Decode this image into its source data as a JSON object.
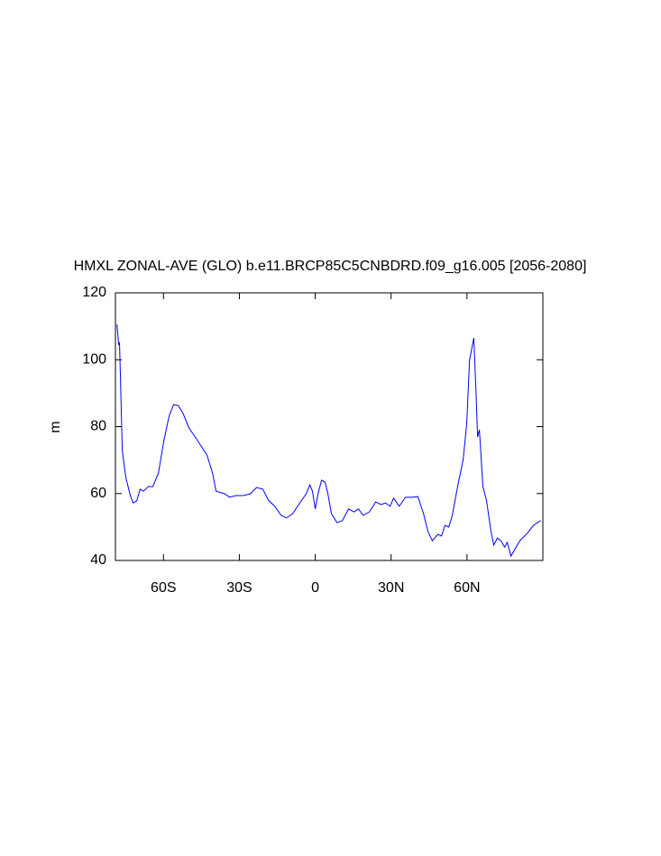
{
  "chart_data": {
    "type": "line",
    "title": "HMXL ZONAL-AVE (GLO) b.e11.BRCP85C5CNBDRD.f09_g16.005 [2056-2080]",
    "y_label": "m",
    "xlim": [
      -79,
      90
    ],
    "ylim": [
      40,
      120
    ],
    "xticks": [
      {
        "value": -60,
        "label": "60S"
      },
      {
        "value": -30,
        "label": "30S"
      },
      0,
      {
        "value": 30,
        "label": "30N"
      },
      {
        "value": 60,
        "label": "60N"
      }
    ],
    "yticks": [
      40,
      60,
      80,
      100,
      120
    ],
    "series": [
      {
        "color": "#0000ff",
        "x": [
          -78.4,
          -77.7,
          -77.4,
          -77,
          -76.3,
          -74.9,
          -73.1,
          -72,
          -70.6,
          -69.2,
          -67.9,
          -66,
          -64.2,
          -62,
          -59.9,
          -57.8,
          -56,
          -54.2,
          -52.4,
          -49.9,
          -46.3,
          -42.8,
          -40.6,
          -39.2,
          -35.7,
          -33.9,
          -31.4,
          -28.5,
          -25.7,
          -23.2,
          -20.7,
          -18.5,
          -16,
          -13.5,
          -11.4,
          -8.9,
          -6.1,
          -3.6,
          -2.1,
          -1.1,
          0,
          1.1,
          2.5,
          3.9,
          5,
          6.4,
          8.6,
          10.7,
          13.2,
          15.3,
          17.1,
          18.9,
          21.4,
          23.9,
          26,
          27.8,
          29.6,
          31,
          33.2,
          35.7,
          38.5,
          40.6,
          42.8,
          44.6,
          46.3,
          48.5,
          49.9,
          51.3,
          52.8,
          54.2,
          56.3,
          58.5,
          59.9,
          61,
          62.7,
          63.5,
          64.2,
          64.9,
          66.3,
          67.7,
          69.5,
          70.6,
          72,
          73.4,
          74.9,
          75.9,
          77.4,
          78.8,
          80.9,
          83.8,
          86.3,
          89.1
        ],
        "values": [
          110.6,
          104.4,
          105.2,
          94.4,
          72.9,
          64.8,
          59.4,
          57.2,
          57.8,
          61.3,
          60.7,
          62.1,
          62.1,
          66.1,
          75.6,
          83.1,
          86.6,
          86.3,
          84.2,
          79.6,
          75.6,
          71.5,
          66.1,
          60.7,
          59.9,
          58.9,
          59.4,
          59.4,
          59.9,
          61.8,
          61.3,
          58.0,
          56.2,
          53.5,
          52.7,
          54.0,
          57.2,
          59.9,
          62.6,
          60.7,
          55.4,
          59.9,
          64.0,
          63.4,
          59.9,
          54.0,
          51.3,
          51.9,
          55.4,
          54.5,
          55.4,
          53.5,
          54.5,
          57.5,
          56.7,
          57.2,
          56.2,
          58.6,
          56.2,
          58.9,
          58.9,
          59.1,
          54.0,
          48.6,
          45.9,
          47.8,
          47.3,
          50.5,
          50.0,
          53.5,
          62.1,
          70.2,
          80.9,
          99.8,
          106.5,
          91.7,
          76.9,
          79.1,
          62.1,
          58.0,
          48.6,
          44.6,
          46.7,
          45.9,
          44.0,
          45.4,
          41.3,
          43.2,
          45.9,
          48.1,
          50.5,
          51.9
        ]
      }
    ]
  }
}
